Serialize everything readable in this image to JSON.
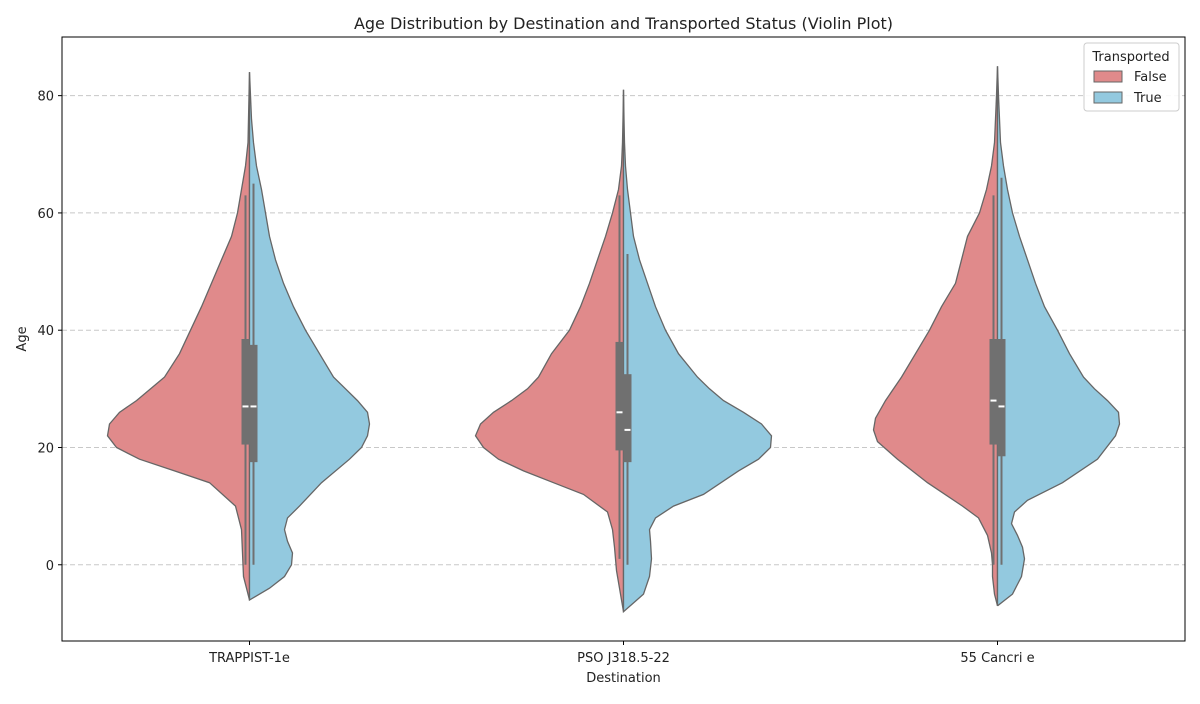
{
  "chart_data": {
    "type": "violin",
    "title": "Age Distribution by Destination and Transported Status (Violin Plot)",
    "xlabel": "Destination",
    "ylabel": "Age",
    "categories": [
      "TRAPPIST-1e",
      "PSO J318.5-22",
      "55 Cancri e"
    ],
    "ylim": [
      -13,
      90
    ],
    "yticks": [
      0,
      20,
      40,
      60,
      80
    ],
    "grid": "y-dashed",
    "split": true,
    "legend": {
      "title": "Transported",
      "placement": "top-right",
      "entries": [
        {
          "label": "False",
          "color": "#e08a8b"
        },
        {
          "label": "True",
          "color": "#93c9df"
        }
      ]
    },
    "series": [
      {
        "name": "False",
        "color": "#e08a8b",
        "distributions": [
          {
            "category": "TRAPPIST-1e",
            "min": 0,
            "q1": 20.5,
            "median": 27,
            "q3": 38.5,
            "max": 63,
            "kde_range": [
              -6,
              84
            ],
            "profile": [
              [
                -6,
                0
              ],
              [
                -4,
                3
              ],
              [
                -2,
                6
              ],
              [
                0,
                6.5
              ],
              [
                2,
                7
              ],
              [
                6,
                8
              ],
              [
                10,
                14
              ],
              [
                14,
                40
              ],
              [
                16,
                75
              ],
              [
                18,
                110
              ],
              [
                20,
                133
              ],
              [
                22,
                142
              ],
              [
                24,
                140
              ],
              [
                26,
                130
              ],
              [
                28,
                113
              ],
              [
                32,
                85
              ],
              [
                36,
                70
              ],
              [
                40,
                59
              ],
              [
                44,
                48
              ],
              [
                48,
                38
              ],
              [
                52,
                28
              ],
              [
                56,
                18
              ],
              [
                60,
                12
              ],
              [
                64,
                8
              ],
              [
                68,
                4
              ],
              [
                72,
                1.5
              ],
              [
                76,
                1
              ],
              [
                80,
                0.5
              ],
              [
                84,
                0
              ]
            ]
          },
          {
            "category": "PSO J318.5-22",
            "min": 1,
            "q1": 19.5,
            "median": 26,
            "q3": 38,
            "max": 63,
            "kde_range": [
              -8,
              81
            ],
            "profile": [
              [
                -8,
                0
              ],
              [
                -6,
                2
              ],
              [
                -4,
                4
              ],
              [
                -1,
                7
              ],
              [
                3,
                9
              ],
              [
                6,
                11
              ],
              [
                9,
                16
              ],
              [
                12,
                40
              ],
              [
                14,
                70
              ],
              [
                16,
                100
              ],
              [
                18,
                125
              ],
              [
                20,
                140
              ],
              [
                22,
                148
              ],
              [
                24,
                143
              ],
              [
                26,
                130
              ],
              [
                28,
                112
              ],
              [
                30,
                96
              ],
              [
                32,
                85
              ],
              [
                36,
                72
              ],
              [
                40,
                54
              ],
              [
                44,
                43
              ],
              [
                48,
                34
              ],
              [
                52,
                26
              ],
              [
                56,
                18
              ],
              [
                60,
                11
              ],
              [
                64,
                5
              ],
              [
                68,
                2
              ],
              [
                72,
                1
              ],
              [
                76,
                0.5
              ],
              [
                81,
                0
              ]
            ]
          },
          {
            "category": "55 Cancri e",
            "min": 0,
            "q1": 20.5,
            "median": 28,
            "q3": 38.5,
            "max": 63,
            "kde_range": [
              -7,
              85
            ],
            "profile": [
              [
                -7,
                0
              ],
              [
                -5,
                3
              ],
              [
                -2,
                5
              ],
              [
                0,
                5
              ],
              [
                2,
                6
              ],
              [
                5,
                10
              ],
              [
                8,
                19
              ],
              [
                10,
                35
              ],
              [
                14,
                70
              ],
              [
                18,
                100
              ],
              [
                21,
                120
              ],
              [
                23,
                124
              ],
              [
                25,
                122
              ],
              [
                28,
                112
              ],
              [
                32,
                96
              ],
              [
                36,
                82
              ],
              [
                40,
                68
              ],
              [
                44,
                56
              ],
              [
                48,
                42
              ],
              [
                52,
                36
              ],
              [
                56,
                30
              ],
              [
                60,
                18
              ],
              [
                64,
                11
              ],
              [
                68,
                6
              ],
              [
                72,
                3
              ],
              [
                76,
                2
              ],
              [
                80,
                1
              ],
              [
                85,
                0
              ]
            ]
          }
        ]
      },
      {
        "name": "True",
        "color": "#93c9df",
        "distributions": [
          {
            "category": "TRAPPIST-1e",
            "min": 0,
            "q1": 17.5,
            "median": 27,
            "q3": 37.5,
            "max": 65,
            "kde_range": [
              -6,
              84
            ],
            "profile": [
              [
                -6,
                0
              ],
              [
                -4,
                20
              ],
              [
                -2,
                35
              ],
              [
                0,
                42
              ],
              [
                2,
                43
              ],
              [
                4,
                38
              ],
              [
                6,
                35
              ],
              [
                8,
                38
              ],
              [
                10,
                50
              ],
              [
                14,
                72
              ],
              [
                18,
                100
              ],
              [
                20,
                112
              ],
              [
                22,
                118
              ],
              [
                24,
                120
              ],
              [
                26,
                118
              ],
              [
                28,
                108
              ],
              [
                30,
                96
              ],
              [
                32,
                84
              ],
              [
                36,
                70
              ],
              [
                40,
                56
              ],
              [
                44,
                44
              ],
              [
                48,
                34
              ],
              [
                52,
                26
              ],
              [
                56,
                20
              ],
              [
                60,
                16
              ],
              [
                64,
                12
              ],
              [
                68,
                7
              ],
              [
                72,
                4
              ],
              [
                76,
                2
              ],
              [
                80,
                1
              ],
              [
                84,
                0
              ]
            ]
          },
          {
            "category": "PSO J318.5-22",
            "min": 0,
            "q1": 17.5,
            "median": 23,
            "q3": 32.5,
            "max": 53,
            "kde_range": [
              -8,
              81
            ],
            "profile": [
              [
                -8,
                0
              ],
              [
                -5,
                20
              ],
              [
                -2,
                26
              ],
              [
                1,
                28
              ],
              [
                4,
                27
              ],
              [
                6,
                26
              ],
              [
                8,
                32
              ],
              [
                10,
                50
              ],
              [
                12,
                80
              ],
              [
                16,
                115
              ],
              [
                18,
                135
              ],
              [
                20,
                147
              ],
              [
                22,
                148
              ],
              [
                24,
                138
              ],
              [
                26,
                120
              ],
              [
                28,
                100
              ],
              [
                30,
                86
              ],
              [
                32,
                74
              ],
              [
                36,
                55
              ],
              [
                40,
                42
              ],
              [
                44,
                32
              ],
              [
                48,
                24
              ],
              [
                52,
                16
              ],
              [
                56,
                10
              ],
              [
                60,
                7
              ],
              [
                64,
                4
              ],
              [
                68,
                2
              ],
              [
                72,
                1
              ],
              [
                76,
                0.5
              ],
              [
                81,
                0
              ]
            ]
          },
          {
            "category": "55 Cancri e",
            "min": 0,
            "q1": 18.5,
            "median": 27,
            "q3": 38.5,
            "max": 66,
            "kde_range": [
              -7,
              85
            ],
            "profile": [
              [
                -7,
                0
              ],
              [
                -5,
                15
              ],
              [
                -2,
                24
              ],
              [
                1,
                27
              ],
              [
                3,
                25
              ],
              [
                5,
                20
              ],
              [
                7,
                14
              ],
              [
                9,
                17
              ],
              [
                11,
                30
              ],
              [
                14,
                65
              ],
              [
                18,
                100
              ],
              [
                22,
                118
              ],
              [
                24,
                122
              ],
              [
                26,
                121
              ],
              [
                28,
                110
              ],
              [
                30,
                97
              ],
              [
                32,
                86
              ],
              [
                36,
                72
              ],
              [
                40,
                60
              ],
              [
                44,
                47
              ],
              [
                48,
                38
              ],
              [
                52,
                30
              ],
              [
                56,
                22
              ],
              [
                60,
                15
              ],
              [
                64,
                10
              ],
              [
                68,
                6
              ],
              [
                72,
                3
              ],
              [
                76,
                2
              ],
              [
                80,
                1
              ],
              [
                85,
                0
              ]
            ]
          }
        ]
      }
    ]
  }
}
